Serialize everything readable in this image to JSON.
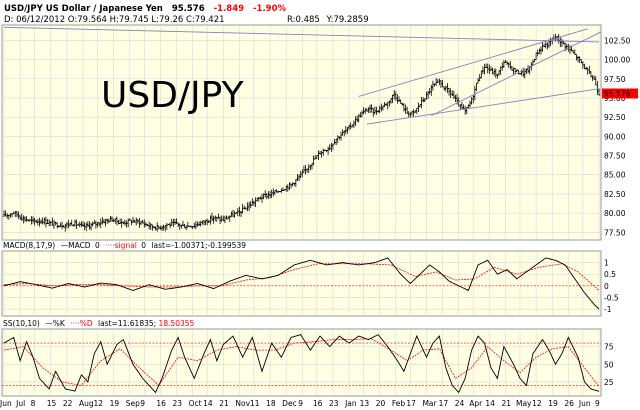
{
  "header": {
    "symbol": "USD/JPY US Dollar / Japanese Yen",
    "last": "95.576",
    "change": "-1.849",
    "change_pct": "-1.90%",
    "ohlc_line": "D: 06/12/2012 O:79.564 H:79.745 L:79.26 C:79.421",
    "r_value": "R:0.485",
    "y_value": "Y:79.2859",
    "big_label": "USD/JPY"
  },
  "colors": {
    "panel_bg": "#ffffe4",
    "grid": "#d8d8d8",
    "price_bars": "#000000",
    "trendline": "#8080c0",
    "macd_line": "#000000",
    "signal_line": "#ff0000",
    "last_price_bg": "#ff0000",
    "ref_line": "#ff0000"
  },
  "chart_data": [
    {
      "id": "price",
      "type": "ohlc",
      "title": "USD/JPY US Dollar / Japanese Yen",
      "last_price": "95.576",
      "ylim": [
        76.5,
        104.5
      ],
      "y_ticks": [
        "77.50",
        "80.00",
        "82.50",
        "85.00",
        "87.50",
        "90.00",
        "92.50",
        "95.00",
        "97.50",
        "100.00",
        "102.50"
      ],
      "x_ticks": [
        "Jun",
        "Jul",
        "8",
        "15",
        "22",
        "Aug",
        "12",
        "19",
        "Sep",
        "9",
        "16",
        "23",
        "Oct",
        "14",
        "21",
        "Nov",
        "11",
        "18",
        "Dec",
        "9",
        "16",
        "23",
        "Jan",
        "13",
        "20",
        "Feb",
        "17",
        "Mar",
        "17",
        "24",
        "Apr",
        "14",
        "21",
        "May",
        "12",
        "19",
        "26",
        "Jun",
        "9"
      ],
      "close_anchors": [
        [
          0,
          79.6
        ],
        [
          6,
          80.1
        ],
        [
          12,
          79.3
        ],
        [
          18,
          78.9
        ],
        [
          24,
          79.0
        ],
        [
          30,
          78.6
        ],
        [
          37,
          78.4
        ],
        [
          43,
          78.7
        ],
        [
          49,
          78.2
        ],
        [
          55,
          78.5
        ],
        [
          61,
          78.9
        ],
        [
          67,
          79.2
        ],
        [
          73,
          78.7
        ],
        [
          79,
          79.0
        ],
        [
          85,
          78.8
        ],
        [
          91,
          78.3
        ],
        [
          96,
          78.1
        ],
        [
          101,
          78.5
        ],
        [
          106,
          78.6
        ],
        [
          112,
          78.3
        ],
        [
          118,
          78.4
        ],
        [
          124,
          78.9
        ],
        [
          130,
          79.4
        ],
        [
          136,
          79.1
        ],
        [
          140,
          79.6
        ],
        [
          146,
          80.1
        ],
        [
          152,
          81.0
        ],
        [
          158,
          81.9
        ],
        [
          162,
          82.3
        ],
        [
          166,
          82.5
        ],
        [
          172,
          83.1
        ],
        [
          178,
          83.7
        ],
        [
          184,
          84.9
        ],
        [
          190,
          86.4
        ],
        [
          196,
          87.9
        ],
        [
          202,
          88.6
        ],
        [
          206,
          89.7
        ],
        [
          210,
          90.4
        ],
        [
          214,
          91.1
        ],
        [
          218,
          92.1
        ],
        [
          222,
          93.0
        ],
        [
          226,
          93.6
        ],
        [
          230,
          93.2
        ],
        [
          234,
          93.8
        ],
        [
          238,
          94.4
        ],
        [
          242,
          95.5
        ],
        [
          246,
          94.3
        ],
        [
          250,
          93.1
        ],
        [
          254,
          93.0
        ],
        [
          258,
          94.2
        ],
        [
          262,
          95.3
        ],
        [
          266,
          96.6
        ],
        [
          270,
          97.0
        ],
        [
          274,
          96.2
        ],
        [
          278,
          95.4
        ],
        [
          282,
          94.1
        ],
        [
          286,
          93.2
        ],
        [
          290,
          94.7
        ],
        [
          294,
          97.5
        ],
        [
          298,
          99.1
        ],
        [
          302,
          98.5
        ],
        [
          306,
          98.0
        ],
        [
          310,
          99.7
        ],
        [
          314,
          99.0
        ],
        [
          318,
          98.4
        ],
        [
          322,
          98.2
        ],
        [
          326,
          98.8
        ],
        [
          330,
          100.7
        ],
        [
          334,
          101.7
        ],
        [
          338,
          102.1
        ],
        [
          342,
          103.0
        ],
        [
          346,
          102.2
        ],
        [
          350,
          101.5
        ],
        [
          354,
          100.6
        ],
        [
          358,
          99.6
        ],
        [
          362,
          98.4
        ],
        [
          366,
          97.4
        ],
        [
          369,
          95.576
        ]
      ],
      "trendlines": [
        {
          "from": [
            0,
            104.2
          ],
          "to": [
            369,
            102.3
          ]
        },
        {
          "from": [
            220,
            95.2
          ],
          "to": [
            362,
            104.0
          ]
        },
        {
          "from": [
            225,
            91.6
          ],
          "to": [
            369,
            96.2
          ]
        },
        {
          "from": [
            265,
            92.7
          ],
          "to": [
            372,
            103.6
          ]
        }
      ]
    },
    {
      "id": "macd",
      "type": "line",
      "label": "MACD(8,17,9)",
      "macd_label": "MACD",
      "macd_value": "0",
      "signal_label": "signal",
      "signal_value": "0",
      "last_text": "last=-1.00371;-0.199539",
      "ylim": [
        -1.3,
        1.5
      ],
      "y_ticks": [
        "-1",
        "-0.5",
        "0",
        "0.5",
        "1"
      ],
      "macd_anchors": [
        [
          0,
          0.0
        ],
        [
          10,
          0.18
        ],
        [
          20,
          0.05
        ],
        [
          30,
          -0.1
        ],
        [
          40,
          0.1
        ],
        [
          50,
          -0.05
        ],
        [
          60,
          0.12
        ],
        [
          70,
          0.05
        ],
        [
          80,
          -0.2
        ],
        [
          90,
          0.05
        ],
        [
          100,
          -0.15
        ],
        [
          110,
          -0.05
        ],
        [
          120,
          0.1
        ],
        [
          130,
          -0.12
        ],
        [
          140,
          0.2
        ],
        [
          150,
          0.45
        ],
        [
          160,
          0.3
        ],
        [
          170,
          0.45
        ],
        [
          180,
          0.9
        ],
        [
          190,
          1.1
        ],
        [
          200,
          0.9
        ],
        [
          210,
          1.0
        ],
        [
          220,
          0.9
        ],
        [
          230,
          1.0
        ],
        [
          238,
          1.2
        ],
        [
          246,
          0.5
        ],
        [
          252,
          0.1
        ],
        [
          258,
          0.5
        ],
        [
          264,
          0.9
        ],
        [
          270,
          0.6
        ],
        [
          276,
          0.2
        ],
        [
          282,
          0.0
        ],
        [
          288,
          -0.2
        ],
        [
          294,
          0.9
        ],
        [
          300,
          1.1
        ],
        [
          306,
          0.5
        ],
        [
          312,
          0.7
        ],
        [
          318,
          0.3
        ],
        [
          324,
          0.6
        ],
        [
          330,
          0.9
        ],
        [
          336,
          1.2
        ],
        [
          342,
          1.1
        ],
        [
          348,
          0.9
        ],
        [
          354,
          0.3
        ],
        [
          360,
          -0.3
        ],
        [
          366,
          -0.8
        ],
        [
          369,
          -1.0
        ]
      ],
      "signal_anchors": [
        [
          0,
          0.05
        ],
        [
          15,
          0.1
        ],
        [
          30,
          0.0
        ],
        [
          45,
          0.05
        ],
        [
          60,
          0.05
        ],
        [
          75,
          0.0
        ],
        [
          90,
          -0.05
        ],
        [
          105,
          -0.05
        ],
        [
          120,
          0.0
        ],
        [
          135,
          0.0
        ],
        [
          150,
          0.25
        ],
        [
          165,
          0.35
        ],
        [
          180,
          0.7
        ],
        [
          195,
          0.95
        ],
        [
          210,
          0.95
        ],
        [
          225,
          0.95
        ],
        [
          240,
          0.9
        ],
        [
          255,
          0.4
        ],
        [
          268,
          0.6
        ],
        [
          280,
          0.25
        ],
        [
          292,
          0.3
        ],
        [
          304,
          0.8
        ],
        [
          318,
          0.5
        ],
        [
          332,
          0.8
        ],
        [
          346,
          0.95
        ],
        [
          356,
          0.6
        ],
        [
          369,
          -0.2
        ]
      ]
    },
    {
      "id": "stochastic",
      "type": "line",
      "label": "SS(10,10)",
      "k_label": "%K",
      "d_label": "%D",
      "last_text": "last=11.61835;",
      "d_last": "18.50355",
      "ylim": [
        5,
        100
      ],
      "y_ticks": [
        "25",
        "50",
        "75"
      ],
      "ref_lines": [
        20,
        80
      ],
      "k_anchors": [
        [
          0,
          80
        ],
        [
          6,
          88
        ],
        [
          10,
          55
        ],
        [
          14,
          82
        ],
        [
          18,
          60
        ],
        [
          22,
          30
        ],
        [
          28,
          15
        ],
        [
          32,
          40
        ],
        [
          38,
          15
        ],
        [
          44,
          12
        ],
        [
          48,
          35
        ],
        [
          52,
          25
        ],
        [
          56,
          65
        ],
        [
          60,
          82
        ],
        [
          64,
          50
        ],
        [
          70,
          78
        ],
        [
          74,
          85
        ],
        [
          80,
          50
        ],
        [
          86,
          30
        ],
        [
          90,
          20
        ],
        [
          94,
          10
        ],
        [
          98,
          30
        ],
        [
          104,
          70
        ],
        [
          108,
          88
        ],
        [
          112,
          60
        ],
        [
          118,
          30
        ],
        [
          124,
          65
        ],
        [
          128,
          85
        ],
        [
          132,
          55
        ],
        [
          136,
          78
        ],
        [
          142,
          90
        ],
        [
          148,
          60
        ],
        [
          154,
          88
        ],
        [
          160,
          40
        ],
        [
          166,
          80
        ],
        [
          172,
          60
        ],
        [
          178,
          88
        ],
        [
          184,
          92
        ],
        [
          190,
          70
        ],
        [
          196,
          90
        ],
        [
          202,
          75
        ],
        [
          208,
          90
        ],
        [
          214,
          80
        ],
        [
          220,
          90
        ],
        [
          226,
          85
        ],
        [
          232,
          92
        ],
        [
          238,
          75
        ],
        [
          244,
          55
        ],
        [
          248,
          40
        ],
        [
          252,
          65
        ],
        [
          256,
          90
        ],
        [
          262,
          60
        ],
        [
          266,
          80
        ],
        [
          270,
          90
        ],
        [
          274,
          45
        ],
        [
          278,
          20
        ],
        [
          282,
          10
        ],
        [
          286,
          30
        ],
        [
          290,
          70
        ],
        [
          294,
          90
        ],
        [
          298,
          80
        ],
        [
          302,
          45
        ],
        [
          306,
          30
        ],
        [
          310,
          75
        ],
        [
          316,
          50
        ],
        [
          320,
          30
        ],
        [
          324,
          20
        ],
        [
          328,
          65
        ],
        [
          334,
          85
        ],
        [
          338,
          70
        ],
        [
          342,
          50
        ],
        [
          346,
          65
        ],
        [
          350,
          88
        ],
        [
          356,
          60
        ],
        [
          360,
          25
        ],
        [
          364,
          15
        ],
        [
          369,
          11.6
        ]
      ],
      "d_anchors": [
        [
          0,
          70
        ],
        [
          12,
          75
        ],
        [
          24,
          45
        ],
        [
          36,
          25
        ],
        [
          48,
          20
        ],
        [
          60,
          55
        ],
        [
          72,
          72
        ],
        [
          84,
          45
        ],
        [
          96,
          20
        ],
        [
          108,
          60
        ],
        [
          120,
          55
        ],
        [
          132,
          70
        ],
        [
          144,
          75
        ],
        [
          156,
          70
        ],
        [
          168,
          70
        ],
        [
          180,
          80
        ],
        [
          192,
          82
        ],
        [
          204,
          85
        ],
        [
          216,
          85
        ],
        [
          228,
          86
        ],
        [
          240,
          70
        ],
        [
          250,
          55
        ],
        [
          260,
          70
        ],
        [
          270,
          72
        ],
        [
          280,
          30
        ],
        [
          290,
          45
        ],
        [
          300,
          75
        ],
        [
          310,
          55
        ],
        [
          320,
          38
        ],
        [
          330,
          60
        ],
        [
          340,
          72
        ],
        [
          350,
          75
        ],
        [
          360,
          45
        ],
        [
          369,
          18.5
        ]
      ]
    }
  ]
}
